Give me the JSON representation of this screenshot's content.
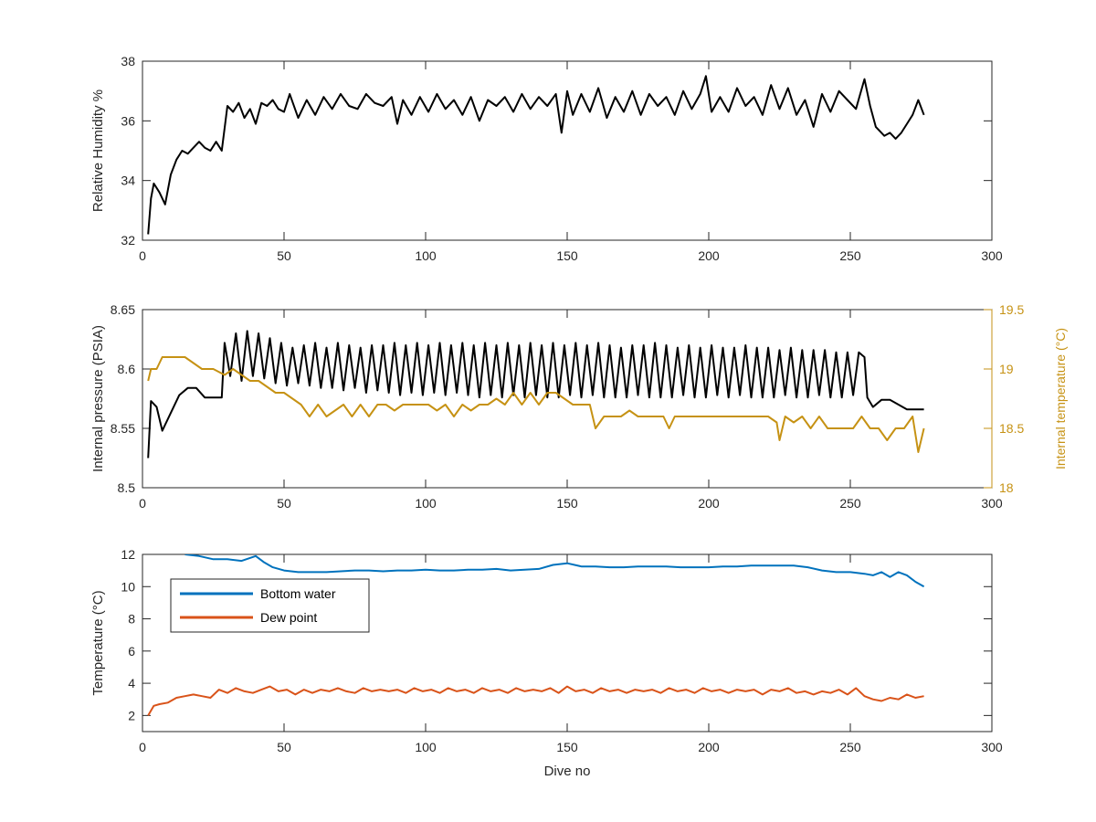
{
  "chart_data": [
    {
      "type": "line",
      "title": "",
      "xlabel": "",
      "ylabel": "Relative Humidity %",
      "xlim": [
        0,
        300
      ],
      "ylim": [
        32,
        38
      ],
      "xticks": [
        0,
        50,
        100,
        150,
        200,
        250,
        300
      ],
      "yticks": [
        32,
        34,
        36,
        38
      ],
      "grid": false,
      "series": [
        {
          "axis": "left",
          "color": "#000000",
          "x": [
            2,
            3,
            4,
            6,
            8,
            10,
            12,
            14,
            16,
            18,
            20,
            22,
            24,
            26,
            28,
            30,
            32,
            34,
            36,
            38,
            40,
            42,
            44,
            46,
            48,
            50,
            52,
            55,
            58,
            61,
            64,
            67,
            70,
            73,
            76,
            79,
            82,
            85,
            88,
            90,
            92,
            95,
            98,
            101,
            104,
            107,
            110,
            113,
            116,
            119,
            122,
            125,
            128,
            131,
            134,
            137,
            140,
            143,
            146,
            148,
            150,
            152,
            155,
            158,
            161,
            164,
            167,
            170,
            173,
            176,
            179,
            182,
            185,
            188,
            191,
            194,
            197,
            199,
            201,
            204,
            207,
            210,
            213,
            216,
            219,
            222,
            225,
            228,
            231,
            234,
            237,
            240,
            243,
            246,
            249,
            252,
            255,
            257,
            259,
            262,
            264,
            266,
            268,
            270,
            272,
            274,
            276
          ],
          "y": [
            32.2,
            33.4,
            33.9,
            33.6,
            33.2,
            34.2,
            34.7,
            35.0,
            34.9,
            35.1,
            35.3,
            35.1,
            35.0,
            35.3,
            35.0,
            36.5,
            36.3,
            36.6,
            36.1,
            36.4,
            35.9,
            36.6,
            36.5,
            36.7,
            36.4,
            36.3,
            36.9,
            36.1,
            36.7,
            36.2,
            36.8,
            36.4,
            36.9,
            36.5,
            36.4,
            36.9,
            36.6,
            36.5,
            36.8,
            35.9,
            36.7,
            36.2,
            36.8,
            36.3,
            36.9,
            36.4,
            36.7,
            36.2,
            36.8,
            36.0,
            36.7,
            36.5,
            36.8,
            36.3,
            36.9,
            36.4,
            36.8,
            36.5,
            36.9,
            35.6,
            37.0,
            36.2,
            36.9,
            36.3,
            37.1,
            36.1,
            36.8,
            36.3,
            37.0,
            36.2,
            36.9,
            36.5,
            36.8,
            36.2,
            37.0,
            36.4,
            36.9,
            37.5,
            36.3,
            36.8,
            36.3,
            37.1,
            36.5,
            36.8,
            36.2,
            37.2,
            36.4,
            37.1,
            36.2,
            36.7,
            35.8,
            36.9,
            36.3,
            37.0,
            36.7,
            36.4,
            37.4,
            36.5,
            35.8,
            35.5,
            35.6,
            35.4,
            35.6,
            35.9,
            36.2,
            36.7,
            36.2
          ]
        }
      ]
    },
    {
      "type": "line",
      "title": "",
      "xlabel": "",
      "ylabel": "Internal pressure (PSIA)",
      "ylabel_right": "Internal temperature (°C)",
      "xlim": [
        0,
        300
      ],
      "ylim": [
        8.5,
        8.65
      ],
      "ylim_right": [
        18,
        19.5
      ],
      "xticks": [
        0,
        50,
        100,
        150,
        200,
        250,
        300
      ],
      "yticks": [
        "8.5",
        "8.55",
        "8.6",
        "8.65"
      ],
      "yticks_right": [
        "18",
        "18.5",
        "19",
        "19.5"
      ],
      "grid": false,
      "series": [
        {
          "axis": "left",
          "color": "#000000",
          "x": [
            2,
            3,
            5,
            7,
            9,
            11,
            13,
            16,
            19,
            22,
            25,
            28,
            29,
            31,
            33,
            35,
            37,
            39,
            41,
            43,
            45,
            47,
            49,
            51,
            53,
            55,
            57,
            59,
            61,
            63,
            65,
            67,
            69,
            71,
            73,
            75,
            77,
            79,
            81,
            83,
            85,
            87,
            89,
            91,
            93,
            95,
            97,
            99,
            101,
            103,
            105,
            107,
            109,
            111,
            113,
            115,
            117,
            119,
            121,
            123,
            125,
            127,
            129,
            131,
            133,
            135,
            137,
            139,
            141,
            143,
            145,
            147,
            149,
            151,
            153,
            155,
            157,
            159,
            161,
            163,
            165,
            167,
            169,
            171,
            173,
            175,
            177,
            179,
            181,
            183,
            185,
            187,
            189,
            191,
            193,
            195,
            197,
            199,
            201,
            203,
            205,
            207,
            209,
            211,
            213,
            215,
            217,
            219,
            221,
            223,
            225,
            227,
            229,
            231,
            233,
            235,
            237,
            239,
            241,
            243,
            245,
            247,
            249,
            251,
            253,
            255,
            256,
            258,
            261,
            264,
            267,
            270,
            273,
            276
          ],
          "y": [
            8.525,
            8.573,
            8.568,
            8.548,
            8.558,
            8.568,
            8.578,
            8.584,
            8.584,
            8.576,
            8.576,
            8.576,
            8.622,
            8.594,
            8.63,
            8.59,
            8.632,
            8.594,
            8.63,
            8.592,
            8.626,
            8.588,
            8.622,
            8.586,
            8.618,
            8.588,
            8.62,
            8.586,
            8.622,
            8.584,
            8.618,
            8.584,
            8.622,
            8.582,
            8.62,
            8.584,
            8.618,
            8.58,
            8.62,
            8.582,
            8.62,
            8.58,
            8.622,
            8.578,
            8.62,
            8.58,
            8.622,
            8.578,
            8.62,
            8.58,
            8.622,
            8.578,
            8.62,
            8.58,
            8.622,
            8.578,
            8.62,
            8.576,
            8.622,
            8.578,
            8.62,
            8.576,
            8.622,
            8.578,
            8.62,
            8.576,
            8.622,
            8.578,
            8.62,
            8.576,
            8.622,
            8.576,
            8.62,
            8.578,
            8.622,
            8.576,
            8.62,
            8.578,
            8.622,
            8.576,
            8.62,
            8.576,
            8.618,
            8.576,
            8.62,
            8.578,
            8.62,
            8.576,
            8.622,
            8.576,
            8.62,
            8.576,
            8.618,
            8.578,
            8.62,
            8.576,
            8.618,
            8.576,
            8.62,
            8.578,
            8.618,
            8.576,
            8.618,
            8.578,
            8.62,
            8.576,
            8.618,
            8.576,
            8.618,
            8.576,
            8.616,
            8.578,
            8.618,
            8.576,
            8.616,
            8.576,
            8.616,
            8.578,
            8.616,
            8.576,
            8.614,
            8.576,
            8.614,
            8.578,
            8.614,
            8.61,
            8.576,
            8.568,
            8.574,
            8.574,
            8.57,
            8.566,
            8.566,
            8.566
          ]
        },
        {
          "axis": "right",
          "color": "#C69214",
          "x": [
            2,
            3,
            5,
            7,
            9,
            12,
            15,
            18,
            21,
            25,
            29,
            32,
            35,
            38,
            41,
            44,
            47,
            50,
            53,
            56,
            59,
            62,
            65,
            68,
            71,
            74,
            77,
            80,
            83,
            86,
            89,
            92,
            95,
            98,
            101,
            104,
            107,
            110,
            113,
            116,
            119,
            122,
            125,
            128,
            131,
            134,
            137,
            140,
            143,
            146,
            149,
            152,
            155,
            158,
            160,
            163,
            166,
            169,
            172,
            175,
            178,
            181,
            184,
            186,
            188,
            191,
            194,
            197,
            200,
            203,
            206,
            209,
            212,
            215,
            218,
            221,
            224,
            225,
            227,
            230,
            233,
            236,
            239,
            242,
            245,
            248,
            251,
            254,
            257,
            260,
            263,
            266,
            269,
            272,
            274,
            276
          ],
          "y": [
            18.9,
            19.0,
            19.0,
            19.1,
            19.1,
            19.1,
            19.1,
            19.05,
            19.0,
            19.0,
            18.95,
            19.0,
            18.95,
            18.9,
            18.9,
            18.85,
            18.8,
            18.8,
            18.75,
            18.7,
            18.6,
            18.7,
            18.6,
            18.65,
            18.7,
            18.6,
            18.7,
            18.6,
            18.7,
            18.7,
            18.65,
            18.7,
            18.7,
            18.7,
            18.7,
            18.65,
            18.7,
            18.6,
            18.7,
            18.65,
            18.7,
            18.7,
            18.75,
            18.7,
            18.8,
            18.7,
            18.8,
            18.7,
            18.8,
            18.8,
            18.75,
            18.7,
            18.7,
            18.7,
            18.5,
            18.6,
            18.6,
            18.6,
            18.65,
            18.6,
            18.6,
            18.6,
            18.6,
            18.5,
            18.6,
            18.6,
            18.6,
            18.6,
            18.6,
            18.6,
            18.6,
            18.6,
            18.6,
            18.6,
            18.6,
            18.6,
            18.55,
            18.4,
            18.6,
            18.55,
            18.6,
            18.5,
            18.6,
            18.5,
            18.5,
            18.5,
            18.5,
            18.6,
            18.5,
            18.5,
            18.4,
            18.5,
            18.5,
            18.6,
            18.3,
            18.5
          ]
        }
      ]
    },
    {
      "type": "line",
      "title": "",
      "xlabel": "Dive no",
      "ylabel": "Temperature (°C)",
      "xlim": [
        0,
        300
      ],
      "ylim": [
        1,
        12
      ],
      "xticks": [
        0,
        50,
        100,
        150,
        200,
        250,
        300
      ],
      "yticks": [
        2,
        4,
        6,
        8,
        10,
        12
      ],
      "grid": false,
      "legend": "top-left",
      "series": [
        {
          "name": "Bottom water",
          "axis": "left",
          "color": "#0072BD",
          "x": [
            15,
            20,
            25,
            30,
            35,
            40,
            43,
            46,
            50,
            55,
            60,
            65,
            70,
            75,
            80,
            85,
            90,
            95,
            100,
            105,
            110,
            115,
            120,
            125,
            130,
            135,
            140,
            145,
            150,
            155,
            160,
            165,
            170,
            175,
            180,
            185,
            190,
            195,
            200,
            205,
            210,
            215,
            220,
            225,
            230,
            235,
            240,
            245,
            250,
            255,
            258,
            261,
            264,
            267,
            270,
            273,
            276
          ],
          "y": [
            12.0,
            11.9,
            11.7,
            11.7,
            11.6,
            11.9,
            11.5,
            11.2,
            11.0,
            10.9,
            10.9,
            10.9,
            10.95,
            11.0,
            11.0,
            10.95,
            11.0,
            11.0,
            11.05,
            11.0,
            11.0,
            11.05,
            11.05,
            11.1,
            11.0,
            11.05,
            11.1,
            11.35,
            11.45,
            11.25,
            11.25,
            11.2,
            11.2,
            11.25,
            11.25,
            11.25,
            11.2,
            11.2,
            11.2,
            11.25,
            11.25,
            11.3,
            11.3,
            11.3,
            11.3,
            11.2,
            11.0,
            10.9,
            10.9,
            10.8,
            10.7,
            10.9,
            10.6,
            10.9,
            10.7,
            10.3,
            10.0
          ]
        },
        {
          "name": "Dew point",
          "axis": "left",
          "color": "#D95319",
          "x": [
            2,
            4,
            6,
            9,
            12,
            15,
            18,
            21,
            24,
            27,
            30,
            33,
            36,
            39,
            42,
            45,
            48,
            51,
            54,
            57,
            60,
            63,
            66,
            69,
            72,
            75,
            78,
            81,
            84,
            87,
            90,
            93,
            96,
            99,
            102,
            105,
            108,
            111,
            114,
            117,
            120,
            123,
            126,
            129,
            132,
            135,
            138,
            141,
            144,
            147,
            150,
            153,
            156,
            159,
            162,
            165,
            168,
            171,
            174,
            177,
            180,
            183,
            186,
            189,
            192,
            195,
            198,
            201,
            204,
            207,
            210,
            213,
            216,
            219,
            222,
            225,
            228,
            231,
            234,
            237,
            240,
            243,
            246,
            249,
            252,
            255,
            258,
            261,
            264,
            267,
            270,
            273,
            276
          ],
          "y": [
            2.0,
            2.6,
            2.7,
            2.8,
            3.1,
            3.2,
            3.3,
            3.2,
            3.1,
            3.6,
            3.4,
            3.7,
            3.5,
            3.4,
            3.6,
            3.8,
            3.5,
            3.6,
            3.3,
            3.6,
            3.4,
            3.6,
            3.5,
            3.7,
            3.5,
            3.4,
            3.7,
            3.5,
            3.6,
            3.5,
            3.6,
            3.4,
            3.7,
            3.5,
            3.6,
            3.4,
            3.7,
            3.5,
            3.6,
            3.4,
            3.7,
            3.5,
            3.6,
            3.4,
            3.7,
            3.5,
            3.6,
            3.5,
            3.7,
            3.4,
            3.8,
            3.5,
            3.6,
            3.4,
            3.7,
            3.5,
            3.6,
            3.4,
            3.6,
            3.5,
            3.6,
            3.4,
            3.7,
            3.5,
            3.6,
            3.4,
            3.7,
            3.5,
            3.6,
            3.4,
            3.6,
            3.5,
            3.6,
            3.3,
            3.6,
            3.5,
            3.7,
            3.4,
            3.5,
            3.3,
            3.5,
            3.4,
            3.6,
            3.3,
            3.7,
            3.2,
            3.0,
            2.9,
            3.1,
            3.0,
            3.3,
            3.1,
            3.2
          ]
        }
      ]
    }
  ]
}
